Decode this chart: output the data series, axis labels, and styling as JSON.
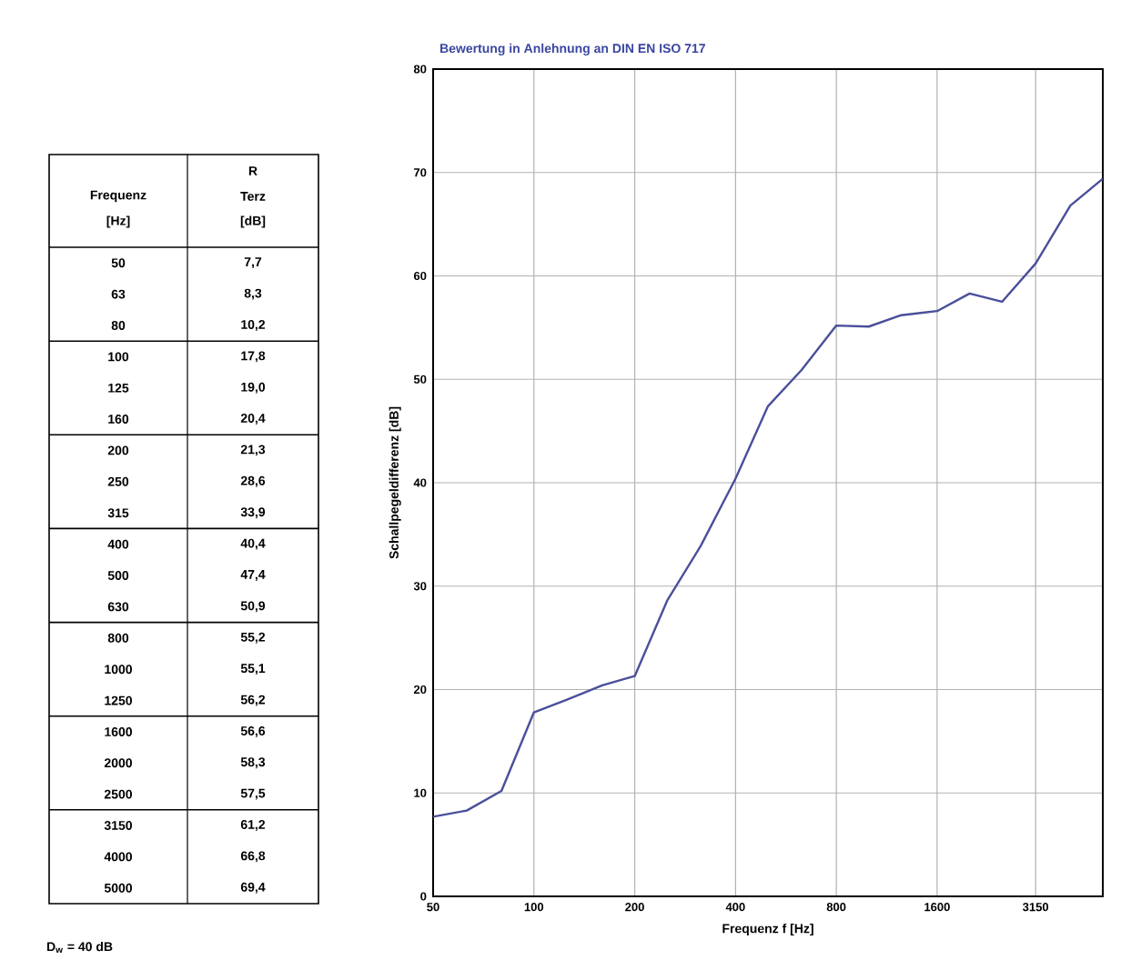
{
  "chart_data": {
    "type": "line",
    "title": "Bewertung in Anlehnung an DIN EN ISO 717",
    "xlabel": "Frequenz f  [Hz]",
    "ylabel": "Schallpegeldifferenz [dB]",
    "x": [
      50,
      63,
      80,
      100,
      125,
      160,
      200,
      250,
      315,
      400,
      500,
      630,
      800,
      1000,
      1250,
      1600,
      2000,
      2500,
      3150,
      4000,
      5000
    ],
    "series": [
      {
        "color": "#4a4f9a",
        "values": [
          7.7,
          8.3,
          10.2,
          17.8,
          19.0,
          20.4,
          21.3,
          28.6,
          33.9,
          40.4,
          47.4,
          50.9,
          55.2,
          55.1,
          56.2,
          56.6,
          58.3,
          57.5,
          61.2,
          66.8,
          69.4
        ]
      }
    ],
    "log": "x",
    "xlim": [
      50,
      5000
    ],
    "xticks": [
      50,
      100,
      200,
      400,
      800,
      1600,
      3150
    ],
    "ylim": [
      0,
      80
    ],
    "yticks": [
      0,
      10,
      20,
      30,
      40,
      50,
      60,
      70,
      80
    ],
    "grid": true,
    "annotations": [
      "Frequenz",
      "[Hz]",
      "R",
      "Terz",
      "[dB]",
      "50",
      "63",
      "80",
      "100",
      "125",
      "160",
      "200",
      "250",
      "315",
      "400",
      "500",
      "630",
      "800",
      "1000",
      "1250",
      "1600",
      "2000",
      "2500",
      "3150",
      "4000",
      "5000",
      "7,7",
      "8,3",
      "10,2",
      "17,8",
      "19,0",
      "20,4",
      "21,3",
      "28,6",
      "33,9",
      "40,4",
      "47,4",
      "50,9",
      "55,2",
      "55,1",
      "56,2",
      "56,6",
      "58,3",
      "57,5",
      "61,2",
      "66,8",
      "69,4",
      "D$_{w}$ = 40 dB"
    ]
  }
}
